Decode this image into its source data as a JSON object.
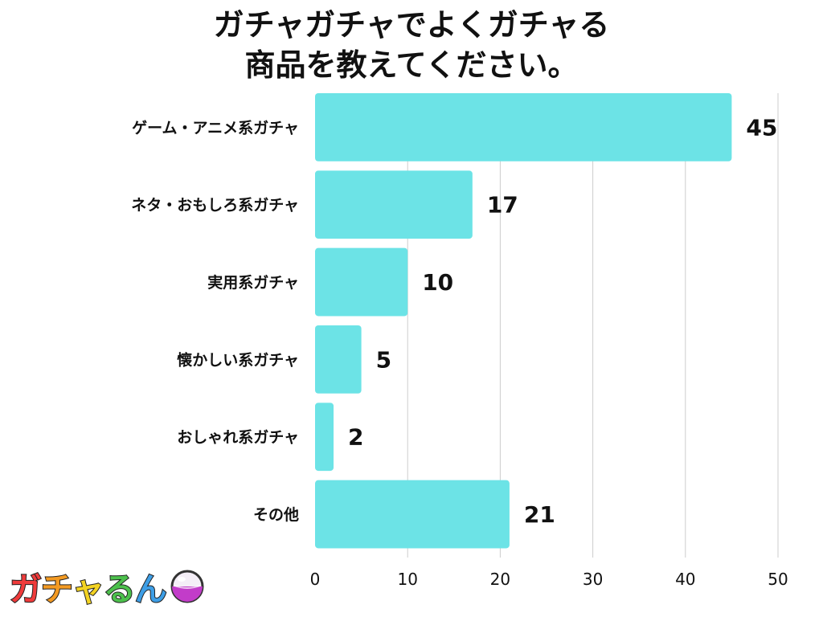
{
  "title_lines": [
    "ガチャガチャでよくガチャる",
    "商品を教えてください。"
  ],
  "logo": {
    "text": [
      "ガ",
      "チ",
      "ャ",
      "る",
      "ん"
    ],
    "icon": "gacha-capsule-icon"
  },
  "colors": {
    "bar": "#6ce3e6",
    "grid": "#cccccc",
    "text": "#111111"
  },
  "chart_data": {
    "type": "bar",
    "orientation": "horizontal",
    "categories": [
      "ゲーム・アニメ系ガチャ",
      "ネタ・おもしろ系ガチャ",
      "実用系ガチャ",
      "懐かしい系ガチャ",
      "おしゃれ系ガチャ",
      "その他"
    ],
    "values": [
      45,
      17,
      10,
      5,
      2,
      21
    ],
    "xlim": [
      0,
      50
    ],
    "xticks": [
      0,
      10,
      20,
      30,
      40,
      50
    ],
    "grid": true,
    "legend": "none"
  }
}
